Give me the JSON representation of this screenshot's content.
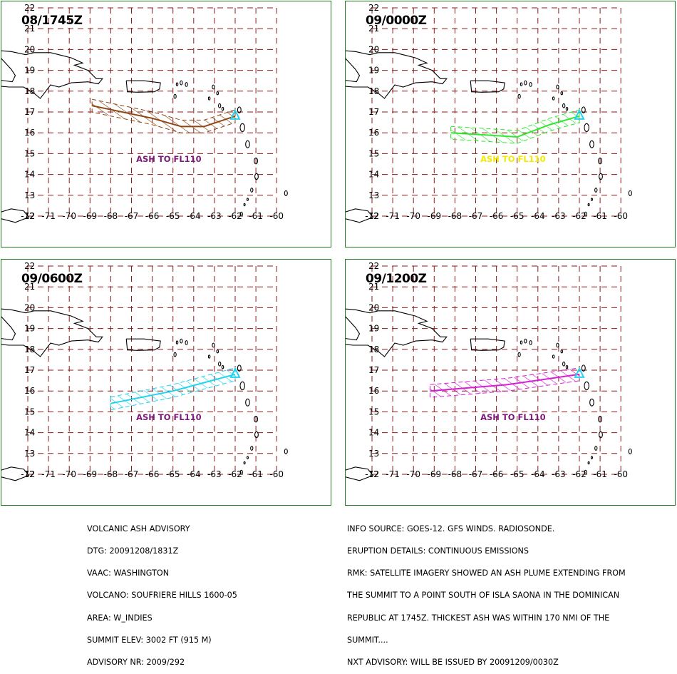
{
  "panels": [
    {
      "time": "08/1745Z",
      "ash_label": "ASH TO FL110",
      "label_color": "#7a1a7a",
      "plume_color": "#8b4513",
      "plume_path": [
        [
          -68.9,
          17.3
        ],
        [
          -66.0,
          16.7
        ],
        [
          -64.6,
          16.3
        ],
        [
          -63.5,
          16.3
        ],
        [
          -62.0,
          16.8
        ]
      ],
      "vent_color": "#22d3ee"
    },
    {
      "time": "09/0000Z",
      "ash_label": "ASH TO FL110",
      "label_color": "#f2ea00",
      "plume_color": "#32e632",
      "plume_path": [
        [
          -68.2,
          16.0
        ],
        [
          -65.0,
          15.8
        ],
        [
          -63.4,
          16.4
        ],
        [
          -62.0,
          16.8
        ]
      ],
      "vent_color": "#22d3ee"
    },
    {
      "time": "09/0600Z",
      "ash_label": "ASH TO FL110",
      "label_color": "#7a1a7a",
      "plume_color": "#22d3ee",
      "plume_path": [
        [
          -68.0,
          15.4
        ],
        [
          -65.0,
          16.0
        ],
        [
          -62.0,
          16.8
        ]
      ],
      "vent_color": "#22d3ee"
    },
    {
      "time": "09/1200Z",
      "ash_label": "ASH TO FL110",
      "label_color": "#7a1a7a",
      "plume_color": "#d61fd6",
      "plume_path": [
        [
          -69.2,
          16.0
        ],
        [
          -65.5,
          16.3
        ],
        [
          -62.0,
          16.8
        ]
      ],
      "vent_color": "#22d3ee"
    }
  ],
  "grid": {
    "lat_labels": [
      "22",
      "21",
      "20",
      "19",
      "18",
      "17",
      "16",
      "15",
      "14",
      "13",
      "12"
    ],
    "lon_labels": [
      "-72",
      "-71",
      "-70",
      "-69",
      "-68",
      "-67",
      "-66",
      "-65",
      "-64",
      "-63",
      "-62",
      "-61",
      "-60"
    ],
    "line_color": "#8b1a1a"
  },
  "advisory_left": [
    "VOLCANIC ASH ADVISORY",
    "DTG: 20091208/1831Z",
    "VAAC: WASHINGTON",
    "VOLCANO: SOUFRIERE HILLS 1600-05",
    "AREA: W_INDIES",
    "SUMMIT ELEV: 3002 FT (915 M)",
    "ADVISORY NR: 2009/292"
  ],
  "advisory_right": [
    "INFO SOURCE: GOES-12. GFS WINDS. RADIOSONDE.",
    "ERUPTION DETAILS: CONTINUOUS EMISSIONS",
    "RMK: SATELLITE IMAGERY SHOWED AN ASH PLUME EXTENDING FROM",
    "THE SUMMIT TO A POINT SOUTH OF ISLA SAONA IN THE DOMINICAN",
    "REPUBLIC AT 1745Z. THICKEST ASH WAS WITHIN 170 NMI OF THE",
    "SUMMIT....",
    "NXT ADVISORY: WILL BE ISSUED BY 20091209/0030Z"
  ]
}
